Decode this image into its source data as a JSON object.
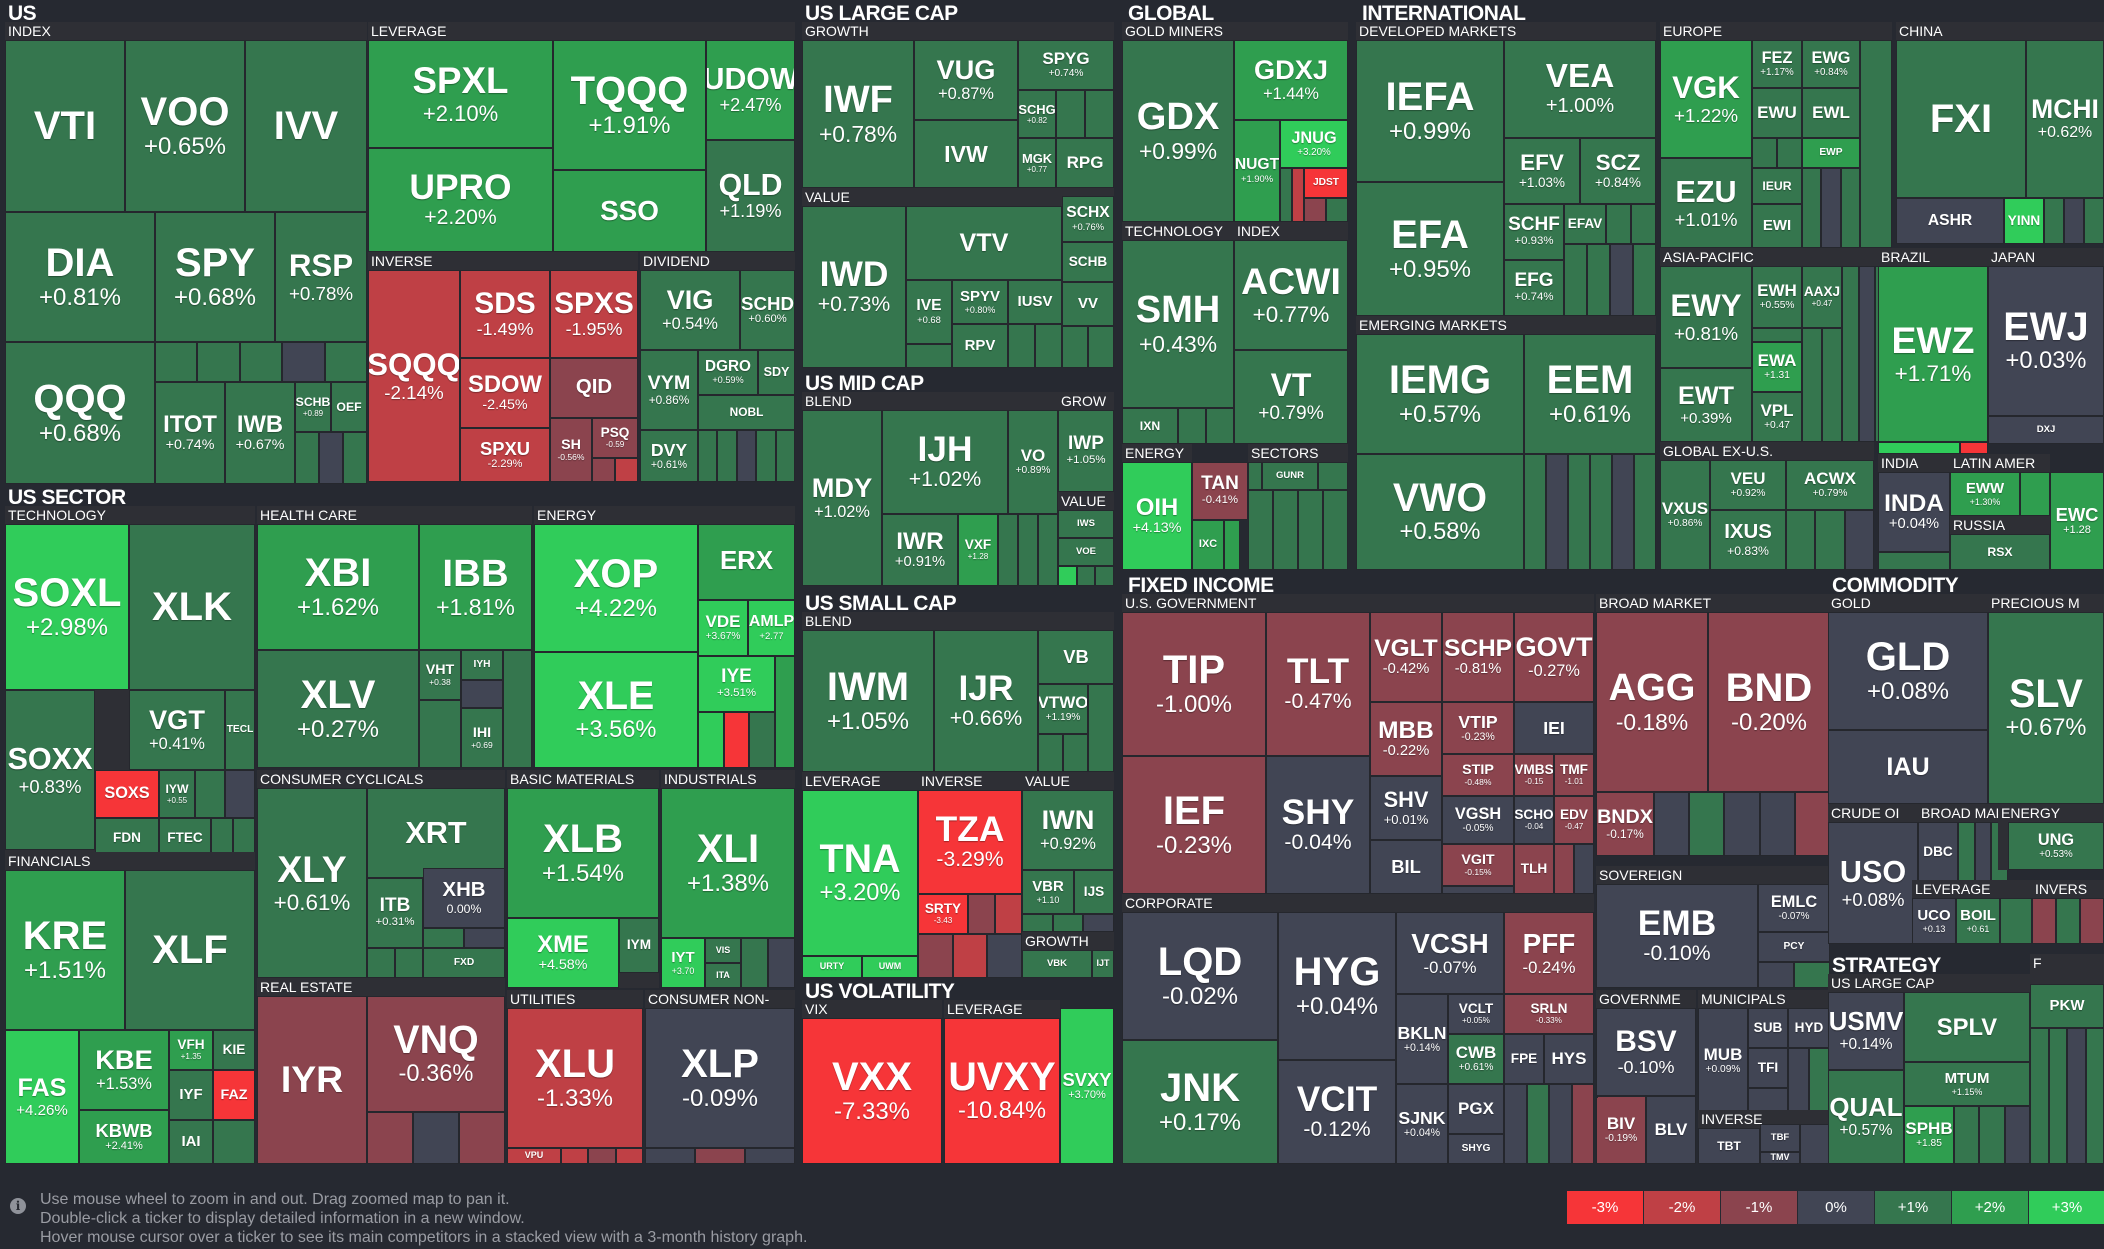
{
  "palette": {
    "-3": "#f63538",
    "-2": "#bf4045",
    "-1": "#8b444e",
    "0": "#414554",
    "1": "#35764e",
    "2": "#2f9e4f",
    "3": "#30cc5a"
  },
  "sections": [
    {
      "id": "us",
      "title": "US"
    },
    {
      "id": "us-sector",
      "title": "US SECTOR"
    },
    {
      "id": "us-large-cap",
      "title": "US LARGE CAP"
    },
    {
      "id": "us-mid-cap",
      "title": "US MID CAP"
    },
    {
      "id": "us-small-cap",
      "title": "US SMALL CAP"
    },
    {
      "id": "us-volatility",
      "title": "US VOLATILITY"
    },
    {
      "id": "global",
      "title": "GLOBAL"
    },
    {
      "id": "international",
      "title": "INTERNATIONAL"
    },
    {
      "id": "fixed-income",
      "title": "FIXED INCOME"
    },
    {
      "id": "commodity",
      "title": "COMMODITY"
    },
    {
      "id": "strategy",
      "title": "STRATEGY"
    }
  ],
  "groups": [
    {
      "id": "index",
      "label": "INDEX"
    },
    {
      "id": "leverage",
      "label": "LEVERAGE"
    },
    {
      "id": "inverse",
      "label": "INVERSE"
    },
    {
      "id": "dividend",
      "label": "DIVIDEND"
    },
    {
      "id": "technology",
      "label": "TECHNOLOGY"
    },
    {
      "id": "health-care",
      "label": "HEALTH CARE"
    },
    {
      "id": "energy",
      "label": "ENERGY"
    },
    {
      "id": "financials",
      "label": "FINANCIALS"
    },
    {
      "id": "consumer-cyclicals",
      "label": "CONSUMER CYCLICALS"
    },
    {
      "id": "basic-materials",
      "label": "BASIC MATERIALS"
    },
    {
      "id": "industrials",
      "label": "INDUSTRIALS"
    },
    {
      "id": "real-estate",
      "label": "REAL ESTATE"
    },
    {
      "id": "utilities",
      "label": "UTILITIES"
    },
    {
      "id": "consumer-non",
      "label": "CONSUMER NON-"
    },
    {
      "id": "lc-growth",
      "label": "GROWTH"
    },
    {
      "id": "lc-value",
      "label": "VALUE"
    },
    {
      "id": "mc-blend",
      "label": "BLEND"
    },
    {
      "id": "mc-grow",
      "label": "GROW"
    },
    {
      "id": "mc-value",
      "label": "VALUE"
    },
    {
      "id": "sc-blend",
      "label": "BLEND"
    },
    {
      "id": "sc-leverage",
      "label": "LEVERAGE"
    },
    {
      "id": "sc-inverse",
      "label": "INVERSE"
    },
    {
      "id": "sc-value",
      "label": "VALUE"
    },
    {
      "id": "sc-growth",
      "label": "GROWTH"
    },
    {
      "id": "vix",
      "label": "VIX"
    },
    {
      "id": "vol-leverage",
      "label": "LEVERAGE"
    },
    {
      "id": "gold-miners",
      "label": "GOLD MINERS"
    },
    {
      "id": "gl-technology",
      "label": "TECHNOLOGY"
    },
    {
      "id": "gl-index",
      "label": "INDEX"
    },
    {
      "id": "gl-energy",
      "label": "ENERGY"
    },
    {
      "id": "gl-sectors",
      "label": "SECTORS"
    },
    {
      "id": "developed",
      "label": "DEVELOPED MARKETS"
    },
    {
      "id": "emerging",
      "label": "EMERGING MARKETS"
    },
    {
      "id": "europe",
      "label": "EUROPE"
    },
    {
      "id": "china",
      "label": "CHINA"
    },
    {
      "id": "asia-pacific",
      "label": "ASIA-PACIFIC"
    },
    {
      "id": "brazil",
      "label": "BRAZIL"
    },
    {
      "id": "japan",
      "label": "JAPAN"
    },
    {
      "id": "global-ex-us",
      "label": "GLOBAL EX-U.S."
    },
    {
      "id": "india",
      "label": "INDIA"
    },
    {
      "id": "latin-amer",
      "label": "LATIN AMER"
    },
    {
      "id": "russia",
      "label": "RUSSIA"
    },
    {
      "id": "us-government",
      "label": "U.S. GOVERNMENT"
    },
    {
      "id": "corporate",
      "label": "CORPORATE"
    },
    {
      "id": "broad-market",
      "label": "BROAD MARKET"
    },
    {
      "id": "sovereign",
      "label": "SOVEREIGN"
    },
    {
      "id": "governme",
      "label": "GOVERNME"
    },
    {
      "id": "municipals",
      "label": "MUNICIPALS"
    },
    {
      "id": "fi-inverse",
      "label": "INVERSE"
    },
    {
      "id": "gold",
      "label": "GOLD"
    },
    {
      "id": "precious",
      "label": "PRECIOUS M"
    },
    {
      "id": "crude-oil",
      "label": "CRUDE OI"
    },
    {
      "id": "broad-mar",
      "label": "BROAD MAR"
    },
    {
      "id": "co-energy",
      "label": "ENERGY"
    },
    {
      "id": "co-leverage",
      "label": "LEVERAGE"
    },
    {
      "id": "co-invers",
      "label": "INVERS"
    },
    {
      "id": "us-large-cap-strat",
      "label": "US LARGE CAP"
    },
    {
      "id": "strat-f",
      "label": "F"
    }
  ],
  "tiles": [
    {
      "t": "VTI",
      "c": ""
    },
    {
      "t": "VOO",
      "c": "+0.65%"
    },
    {
      "t": "IVV",
      "c": ""
    },
    {
      "t": "DIA",
      "c": "+0.81%"
    },
    {
      "t": "SPY",
      "c": "+0.68%"
    },
    {
      "t": "RSP",
      "c": "+0.78%"
    },
    {
      "t": "QQQ",
      "c": "+0.68%"
    },
    {
      "t": "ITOT",
      "c": "+0.74%"
    },
    {
      "t": "IWB",
      "c": "+0.67%"
    },
    {
      "t": "SCHB",
      "c": "+0.89"
    },
    {
      "t": "OEF",
      "c": ""
    },
    {
      "t": "SPXL",
      "c": "+2.10%"
    },
    {
      "t": "TQQQ",
      "c": "+1.91%"
    },
    {
      "t": "UDOW",
      "c": "+2.47%"
    },
    {
      "t": "UPRO",
      "c": "+2.20%"
    },
    {
      "t": "SSO",
      "c": ""
    },
    {
      "t": "QLD",
      "c": "+1.19%"
    },
    {
      "t": "SQQQ",
      "c": "-2.14%"
    },
    {
      "t": "SDS",
      "c": "-1.49%"
    },
    {
      "t": "SPXS",
      "c": "-1.95%"
    },
    {
      "t": "SDOW",
      "c": "-2.45%"
    },
    {
      "t": "QID",
      "c": ""
    },
    {
      "t": "SPXU",
      "c": "-2.29%"
    },
    {
      "t": "SH",
      "c": "-0.56%"
    },
    {
      "t": "PSQ",
      "c": "-0.59"
    },
    {
      "t": "VIG",
      "c": "+0.54%"
    },
    {
      "t": "SCHD",
      "c": "+0.60%"
    },
    {
      "t": "VYM",
      "c": "+0.86%"
    },
    {
      "t": "DGRO",
      "c": "+0.59%"
    },
    {
      "t": "SDY",
      "c": ""
    },
    {
      "t": "NOBL",
      "c": ""
    },
    {
      "t": "DVY",
      "c": "+0.61%"
    },
    {
      "t": "SOXL",
      "c": "+2.98%"
    },
    {
      "t": "XLK",
      "c": ""
    },
    {
      "t": "VGT",
      "c": "+0.41%"
    },
    {
      "t": "TECL",
      "c": ""
    },
    {
      "t": "SOXX",
      "c": "+0.83%"
    },
    {
      "t": "SOXS",
      "c": ""
    },
    {
      "t": "IYW",
      "c": "+0.55"
    },
    {
      "t": "FDN",
      "c": ""
    },
    {
      "t": "FTEC",
      "c": ""
    },
    {
      "t": "XBI",
      "c": "+1.62%"
    },
    {
      "t": "IBB",
      "c": "+1.81%"
    },
    {
      "t": "XLV",
      "c": "+0.27%"
    },
    {
      "t": "VHT",
      "c": "+0.38"
    },
    {
      "t": "IYH",
      "c": ""
    },
    {
      "t": "IHI",
      "c": "+0.69"
    },
    {
      "t": "XOP",
      "c": "+4.22%"
    },
    {
      "t": "ERX",
      "c": ""
    },
    {
      "t": "VDE",
      "c": "+3.67%"
    },
    {
      "t": "AMLP",
      "c": "+2.77"
    },
    {
      "t": "XLE",
      "c": "+3.56%"
    },
    {
      "t": "IYE",
      "c": "+3.51%"
    },
    {
      "t": "KRE",
      "c": "+1.51%"
    },
    {
      "t": "XLF",
      "c": ""
    },
    {
      "t": "FAS",
      "c": "+4.26%"
    },
    {
      "t": "KBE",
      "c": "+1.53%"
    },
    {
      "t": "VFH",
      "c": "+1.35"
    },
    {
      "t": "KIE",
      "c": ""
    },
    {
      "t": "IYF",
      "c": ""
    },
    {
      "t": "FAZ",
      "c": ""
    },
    {
      "t": "KBWB",
      "c": "+2.41%"
    },
    {
      "t": "IAI",
      "c": ""
    },
    {
      "t": "XLY",
      "c": "+0.61%"
    },
    {
      "t": "XRT",
      "c": ""
    },
    {
      "t": "ITB",
      "c": "+0.31%"
    },
    {
      "t": "XHB",
      "c": "0.00%"
    },
    {
      "t": "FXD",
      "c": ""
    },
    {
      "t": "XLB",
      "c": "+1.54%"
    },
    {
      "t": "XME",
      "c": "+4.58%"
    },
    {
      "t": "IYM",
      "c": ""
    },
    {
      "t": "XLI",
      "c": "+1.38%"
    },
    {
      "t": "IYT",
      "c": "+3.70"
    },
    {
      "t": "VIS",
      "c": ""
    },
    {
      "t": "ITA",
      "c": ""
    },
    {
      "t": "IYR",
      "c": ""
    },
    {
      "t": "VNQ",
      "c": "-0.36%"
    },
    {
      "t": "XLU",
      "c": "-1.33%"
    },
    {
      "t": "VPU",
      "c": ""
    },
    {
      "t": "XLP",
      "c": "-0.09%"
    },
    {
      "t": "IWF",
      "c": "+0.78%"
    },
    {
      "t": "VUG",
      "c": "+0.87%"
    },
    {
      "t": "SPYG",
      "c": "+0.74%"
    },
    {
      "t": "IVW",
      "c": ""
    },
    {
      "t": "SCHG",
      "c": "+0.82"
    },
    {
      "t": "MGK",
      "c": "+0.77"
    },
    {
      "t": "RPG",
      "c": ""
    },
    {
      "t": "IWD",
      "c": "+0.73%"
    },
    {
      "t": "VTV",
      "c": ""
    },
    {
      "t": "SCHX",
      "c": "+0.76%"
    },
    {
      "t": "SCHB",
      "c": ""
    },
    {
      "t": "IVE",
      "c": "+0.68"
    },
    {
      "t": "SPYV",
      "c": "+0.80%"
    },
    {
      "t": "IUSV",
      "c": ""
    },
    {
      "t": "VV",
      "c": ""
    },
    {
      "t": "RPV",
      "c": ""
    },
    {
      "t": "MDY",
      "c": "+1.02%"
    },
    {
      "t": "IJH",
      "c": "+1.02%"
    },
    {
      "t": "VO",
      "c": "+0.89%"
    },
    {
      "t": "IWR",
      "c": "+0.91%"
    },
    {
      "t": "VXF",
      "c": "+1.28"
    },
    {
      "t": "IWP",
      "c": "+1.05%"
    },
    {
      "t": "IWS",
      "c": ""
    },
    {
      "t": "VOE",
      "c": ""
    },
    {
      "t": "IWM",
      "c": "+1.05%"
    },
    {
      "t": "IJR",
      "c": "+0.66%"
    },
    {
      "t": "VB",
      "c": ""
    },
    {
      "t": "VTWO",
      "c": "+1.19%"
    },
    {
      "t": "TNA",
      "c": "+3.20%"
    },
    {
      "t": "URTY",
      "c": ""
    },
    {
      "t": "UWM",
      "c": ""
    },
    {
      "t": "TZA",
      "c": "-3.29%"
    },
    {
      "t": "SRTY",
      "c": "-3.43"
    },
    {
      "t": "IWN",
      "c": "+0.92%"
    },
    {
      "t": "VBR",
      "c": "+1.10"
    },
    {
      "t": "IJS",
      "c": ""
    },
    {
      "t": "VBK",
      "c": ""
    },
    {
      "t": "IJT",
      "c": ""
    },
    {
      "t": "VXX",
      "c": "-7.33%"
    },
    {
      "t": "UVXY",
      "c": "-10.84%"
    },
    {
      "t": "SVXY",
      "c": "+3.70%"
    },
    {
      "t": "GDX",
      "c": "+0.99%"
    },
    {
      "t": "GDXJ",
      "c": "+1.44%"
    },
    {
      "t": "NUGT",
      "c": "+1.90%"
    },
    {
      "t": "JNUG",
      "c": "+3.20%"
    },
    {
      "t": "JDST",
      "c": ""
    },
    {
      "t": "SMH",
      "c": "+0.43%"
    },
    {
      "t": "IXN",
      "c": ""
    },
    {
      "t": "ACWI",
      "c": "+0.77%"
    },
    {
      "t": "VT",
      "c": "+0.79%"
    },
    {
      "t": "OIH",
      "c": "+4.13%"
    },
    {
      "t": "IXC",
      "c": ""
    },
    {
      "t": "TAN",
      "c": "-0.41%"
    },
    {
      "t": "GUNR",
      "c": ""
    },
    {
      "t": "IEFA",
      "c": "+0.99%"
    },
    {
      "t": "VEA",
      "c": "+1.00%"
    },
    {
      "t": "EFA",
      "c": "+0.95%"
    },
    {
      "t": "EFV",
      "c": "+1.03%"
    },
    {
      "t": "SCZ",
      "c": "+0.84%"
    },
    {
      "t": "SCHF",
      "c": "+0.93%"
    },
    {
      "t": "EFAV",
      "c": ""
    },
    {
      "t": "EFG",
      "c": "+0.74%"
    },
    {
      "t": "IEMG",
      "c": "+0.57%"
    },
    {
      "t": "EEM",
      "c": "+0.61%"
    },
    {
      "t": "VWO",
      "c": "+0.58%"
    },
    {
      "t": "VGK",
      "c": "+1.22%"
    },
    {
      "t": "FEZ",
      "c": "+1.17%"
    },
    {
      "t": "EWG",
      "c": "+0.84%"
    },
    {
      "t": "EWU",
      "c": ""
    },
    {
      "t": "EWL",
      "c": ""
    },
    {
      "t": "EWP",
      "c": ""
    },
    {
      "t": "EZU",
      "c": "+1.01%"
    },
    {
      "t": "IEUR",
      "c": ""
    },
    {
      "t": "EWI",
      "c": ""
    },
    {
      "t": "FXI",
      "c": ""
    },
    {
      "t": "MCHI",
      "c": "+0.62%"
    },
    {
      "t": "ASHR",
      "c": ""
    },
    {
      "t": "YINN",
      "c": ""
    },
    {
      "t": "EWY",
      "c": "+0.81%"
    },
    {
      "t": "EWH",
      "c": "+0.55%"
    },
    {
      "t": "AAXJ",
      "c": "+0.47"
    },
    {
      "t": "EWT",
      "c": "+0.39%"
    },
    {
      "t": "EWA",
      "c": "+1.31"
    },
    {
      "t": "VPL",
      "c": "+0.47"
    },
    {
      "t": "EWZ",
      "c": "+1.71%"
    },
    {
      "t": "EWJ",
      "c": "+0.03%"
    },
    {
      "t": "DXJ",
      "c": ""
    },
    {
      "t": "VEU",
      "c": "+0.92%"
    },
    {
      "t": "ACWX",
      "c": "+0.79%"
    },
    {
      "t": "VXUS",
      "c": "+0.86%"
    },
    {
      "t": "IXUS",
      "c": "+0.83%"
    },
    {
      "t": "INDA",
      "c": "+0.04%"
    },
    {
      "t": "EWW",
      "c": "+1.30%"
    },
    {
      "t": "EWC",
      "c": "+1.28"
    },
    {
      "t": "RSX",
      "c": ""
    },
    {
      "t": "TIP",
      "c": "-1.00%"
    },
    {
      "t": "TLT",
      "c": "-0.47%"
    },
    {
      "t": "VGLT",
      "c": "-0.42%"
    },
    {
      "t": "SCHP",
      "c": "-0.81%"
    },
    {
      "t": "GOVT",
      "c": "-0.27%"
    },
    {
      "t": "MBB",
      "c": "-0.22%"
    },
    {
      "t": "VTIP",
      "c": "-0.23%"
    },
    {
      "t": "IEI",
      "c": ""
    },
    {
      "t": "STIP",
      "c": "-0.48%"
    },
    {
      "t": "VMBS",
      "c": "-0.15"
    },
    {
      "t": "TMF",
      "c": "-1.01"
    },
    {
      "t": "IEF",
      "c": "-0.23%"
    },
    {
      "t": "SHY",
      "c": "-0.04%"
    },
    {
      "t": "SHV",
      "c": "+0.01%"
    },
    {
      "t": "VGSH",
      "c": "-0.05%"
    },
    {
      "t": "SCHO",
      "c": "-0.04"
    },
    {
      "t": "EDV",
      "c": "-0.47"
    },
    {
      "t": "BIL",
      "c": ""
    },
    {
      "t": "VGIT",
      "c": "-0.15%"
    },
    {
      "t": "TLH",
      "c": ""
    },
    {
      "t": "LQD",
      "c": "-0.02%"
    },
    {
      "t": "HYG",
      "c": "+0.04%"
    },
    {
      "t": "VCSH",
      "c": "-0.07%"
    },
    {
      "t": "PFF",
      "c": "-0.24%"
    },
    {
      "t": "BKLN",
      "c": "+0.14%"
    },
    {
      "t": "VCLT",
      "c": "+0.05%"
    },
    {
      "t": "SRLN",
      "c": "-0.33%"
    },
    {
      "t": "CWB",
      "c": "+0.61%"
    },
    {
      "t": "FPE",
      "c": ""
    },
    {
      "t": "HYS",
      "c": ""
    },
    {
      "t": "JNK",
      "c": "+0.17%"
    },
    {
      "t": "VCIT",
      "c": "-0.12%"
    },
    {
      "t": "SJNK",
      "c": "+0.04%"
    },
    {
      "t": "PGX",
      "c": ""
    },
    {
      "t": "SHYG",
      "c": ""
    },
    {
      "t": "AGG",
      "c": "-0.18%"
    },
    {
      "t": "BND",
      "c": "-0.20%"
    },
    {
      "t": "BNDX",
      "c": "-0.17%"
    },
    {
      "t": "EMB",
      "c": "-0.10%"
    },
    {
      "t": "EMLC",
      "c": "-0.07%"
    },
    {
      "t": "PCY",
      "c": ""
    },
    {
      "t": "BSV",
      "c": "-0.10%"
    },
    {
      "t": "BIV",
      "c": "-0.19%"
    },
    {
      "t": "BLV",
      "c": ""
    },
    {
      "t": "MUB",
      "c": "+0.09%"
    },
    {
      "t": "SUB",
      "c": ""
    },
    {
      "t": "HYD",
      "c": ""
    },
    {
      "t": "TFI",
      "c": ""
    },
    {
      "t": "TBT",
      "c": ""
    },
    {
      "t": "TBF",
      "c": ""
    },
    {
      "t": "TMV",
      "c": ""
    },
    {
      "t": "GLD",
      "c": "+0.08%"
    },
    {
      "t": "IAU",
      "c": ""
    },
    {
      "t": "SLV",
      "c": "+0.67%"
    },
    {
      "t": "USO",
      "c": "+0.08%"
    },
    {
      "t": "DBC",
      "c": ""
    },
    {
      "t": "UNG",
      "c": "+0.53%"
    },
    {
      "t": "UCO",
      "c": "+0.13"
    },
    {
      "t": "BOIL",
      "c": "+0.61"
    },
    {
      "t": "USMV",
      "c": "+0.14%"
    },
    {
      "t": "SPLV",
      "c": ""
    },
    {
      "t": "MTUM",
      "c": "+1.15%"
    },
    {
      "t": "QUAL",
      "c": "+0.57%"
    },
    {
      "t": "SPHB",
      "c": "+1.85"
    },
    {
      "t": "PKW",
      "c": ""
    }
  ],
  "help": {
    "icon": "info-icon",
    "lines": [
      "Use mouse wheel to zoom in and out. Drag zoomed map to pan it.",
      "Double-click a ticker to display detailed information in a new window.",
      "Hover mouse cursor over a ticker to see its main competitors in a stacked view with a 3-month history graph."
    ]
  },
  "legend": [
    "-3%",
    "-2%",
    "-1%",
    "0%",
    "+1%",
    "+2%",
    "+3%"
  ]
}
